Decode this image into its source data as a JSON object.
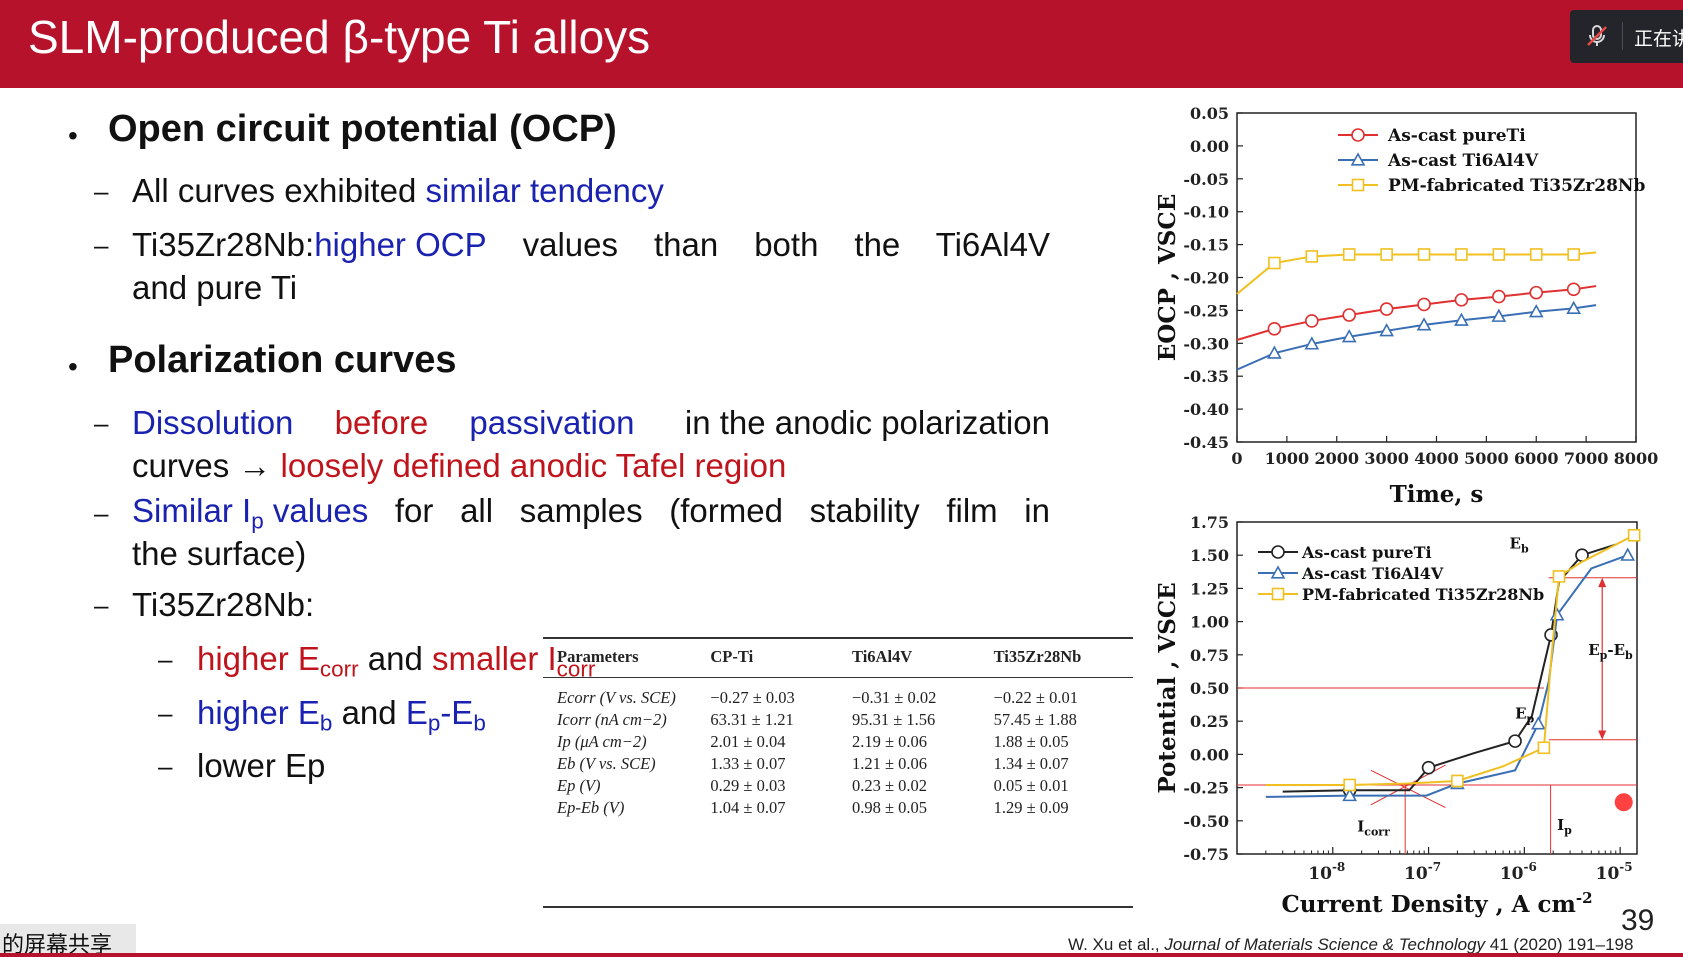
{
  "title": "SLM-produced β-type Ti alloys",
  "meeting": {
    "status_text": "正在讲",
    "mic_icon": "muted-mic-icon"
  },
  "screen_share_label": "的屏幕共享",
  "bullets": {
    "ocp": {
      "heading": "Open circuit potential (OCP)",
      "item1_a": "All curves exhibited ",
      "item1_b": "similar tendency",
      "item2_a": "Ti35Zr28Nb: ",
      "item2_b": "higher OCP",
      "item2_c": " values than both the Ti6Al4V",
      "item2_d": "and pure Ti"
    },
    "polarization": {
      "heading": "Polarization curves",
      "d1_a": "Dissolution",
      "d1_b": "before",
      "d1_c": "passivation",
      "d1_d": " in the anodic polarization",
      "d1_e": "curves → ",
      "d1_f": "loosely defined anodic Tafel region",
      "s1_a": "Similar I",
      "s1_sub": "p",
      "s1_b": " values",
      "s1_c": " for all samples (formed stability film in",
      "s1_d": "the surface)",
      "t1": "Ti35Zr28Nb:",
      "sub1_a": "higher E",
      "sub1_a_sub": "corr",
      "sub1_b": " and ",
      "sub1_c": "smaller I",
      "sub1_c_sub": "corr",
      "sub2_a": "higher E",
      "sub2_a_sub": "b",
      "sub2_b": " and ",
      "sub2_c": "E",
      "sub2_c_sub1": "p",
      "sub2_c_mid": "-E",
      "sub2_c_sub2": "b",
      "sub3": "lower Ep"
    }
  },
  "table": {
    "headers": [
      "Parameters",
      "CP-Ti",
      "Ti6Al4V",
      "Ti35Zr28Nb"
    ],
    "rows": [
      [
        "Ecorr (V vs. SCE)",
        "−0.27 ± 0.03",
        "−0.31 ± 0.02",
        "−0.22 ± 0.01"
      ],
      [
        "Icorr (nA cm−2)",
        "63.31 ± 1.21",
        "95.31 ± 1.56",
        "57.45 ± 1.88"
      ],
      [
        "Ip (μA cm−2)",
        "2.01 ± 0.04",
        "2.19 ± 0.06",
        "1.88 ± 0.05"
      ],
      [
        "Eb (V vs. SCE)",
        "1.33 ± 0.07",
        "1.21 ± 0.06",
        "1.34 ± 0.07"
      ],
      [
        "Ep (V)",
        "0.29 ± 0.03",
        "0.23 ± 0.02",
        "0.05 ± 0.01"
      ],
      [
        "Ep-Eb (V)",
        "1.04 ± 0.07",
        "0.98 ± 0.05",
        "1.29 ± 0.09"
      ]
    ]
  },
  "colors": {
    "pure_ti_red": "#e03030",
    "ti6al4v_blue": "#3a6fb5",
    "zr_yellow": "#f0c020",
    "black": "#222222"
  },
  "chart_data": [
    {
      "type": "line",
      "ylabel": "EOCP , VSCE",
      "xlabel": "Time, s",
      "xlim": [
        0,
        8000
      ],
      "ylim": [
        -0.45,
        0.05
      ],
      "xticks": [
        "0",
        "1000",
        "2000",
        "3000",
        "4000",
        "5000",
        "6000",
        "7000",
        "8000"
      ],
      "yticks": [
        "0.05",
        "0.00",
        "-0.05",
        "-0.10",
        "-0.15",
        "-0.20",
        "-0.25",
        "-0.30",
        "-0.35",
        "-0.40",
        "-0.45"
      ],
      "legend_position": "top-right",
      "series": [
        {
          "name": "As-cast pureTi",
          "marker": "circle",
          "x": [
            0,
            750,
            1500,
            2250,
            3000,
            3750,
            4500,
            5250,
            6000,
            6750,
            7200
          ],
          "y": [
            -0.295,
            -0.278,
            -0.266,
            -0.257,
            -0.248,
            -0.241,
            -0.234,
            -0.229,
            -0.223,
            -0.218,
            -0.213
          ]
        },
        {
          "name": "As-cast Ti6Al4V",
          "marker": "triangle",
          "x": [
            0,
            750,
            1500,
            2250,
            3000,
            3750,
            4500,
            5250,
            6000,
            6750,
            7200
          ],
          "y": [
            -0.34,
            -0.315,
            -0.301,
            -0.29,
            -0.281,
            -0.272,
            -0.265,
            -0.259,
            -0.252,
            -0.247,
            -0.242
          ]
        },
        {
          "name": "PM-fabricated Ti35Zr28Nb",
          "marker": "square",
          "x": [
            0,
            750,
            1500,
            2250,
            3000,
            3750,
            4500,
            5250,
            6000,
            6750,
            7200
          ],
          "y": [
            -0.225,
            -0.178,
            -0.168,
            -0.165,
            -0.165,
            -0.165,
            -0.165,
            -0.165,
            -0.165,
            -0.165,
            -0.162
          ]
        }
      ]
    },
    {
      "type": "line",
      "ylabel": "Potential , VSCE",
      "xlabel": "Current Density , A cm-2",
      "x_scale": "log",
      "xlim": [
        1e-09,
        1.5e-05
      ],
      "ylim": [
        -0.75,
        1.75
      ],
      "xticks": [
        "10-8",
        "10-7",
        "10-6",
        "10-5"
      ],
      "yticks": [
        "1.75",
        "1.50",
        "1.25",
        "1.00",
        "0.75",
        "0.50",
        "0.25",
        "0.00",
        "-0.25",
        "-0.50",
        "-0.75"
      ],
      "legend_position": "top-left",
      "annotations": [
        "Eb",
        "Ep-Eb",
        "Ep",
        "Icorr",
        "Ip"
      ],
      "series": [
        {
          "name": "As-cast pureTi",
          "marker": "circle",
          "x": [
            3e-09,
            1.5e-08,
            6.3e-08,
            1e-07,
            3e-07,
            8e-07,
            1.2e-06,
            1.9e-06,
            2.3e-06,
            4e-06,
            9e-06
          ],
          "y": [
            -0.28,
            -0.27,
            -0.27,
            -0.1,
            0.01,
            0.1,
            0.29,
            0.9,
            1.3,
            1.5,
            1.58
          ]
        },
        {
          "name": "As-cast Ti6Al4V",
          "marker": "triangle",
          "x": [
            2e-09,
            1.5e-08,
            9.5e-08,
            2e-07,
            8e-07,
            1.4e-06,
            1.8e-06,
            2.2e-06,
            5e-06,
            1.2e-05
          ],
          "y": [
            -0.32,
            -0.31,
            -0.31,
            -0.22,
            -0.12,
            0.23,
            0.55,
            1.05,
            1.4,
            1.5
          ]
        },
        {
          "name": "PM-fabricated Ti35Zr28Nb",
          "marker": "square",
          "x": [
            2e-09,
            1.5e-08,
            5.7e-08,
            2e-07,
            6e-07,
            1.6e-06,
            1.9e-06,
            2.3e-06,
            4e-06,
            1.4e-05
          ],
          "y": [
            -0.23,
            -0.23,
            -0.22,
            -0.2,
            -0.09,
            0.05,
            0.7,
            1.34,
            1.45,
            1.65
          ]
        }
      ]
    }
  ],
  "reference": {
    "authors": "W. Xu et al., ",
    "journal": "Journal of Materials Science & Technology",
    "details": " 41 (2020) 191–198"
  },
  "page_number": "39"
}
